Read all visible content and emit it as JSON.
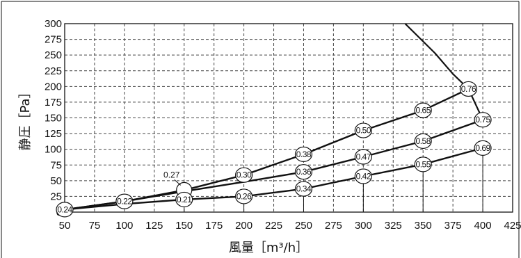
{
  "chart_data": {
    "type": "line",
    "title": "",
    "xlabel": "風量［m³/h］",
    "ylabel": "静圧［Pa］",
    "xlim": [
      50,
      425
    ],
    "ylim": [
      0,
      300
    ],
    "x_ticks": [
      50,
      75,
      100,
      125,
      150,
      175,
      200,
      225,
      250,
      275,
      300,
      325,
      350,
      375,
      400,
      425
    ],
    "y_ticks": [
      0,
      25,
      50,
      75,
      100,
      125,
      150,
      175,
      200,
      225,
      250,
      275,
      300
    ],
    "grid": true,
    "series": [
      {
        "points": [
          {
            "x": 50,
            "y": 4,
            "label": "0.24"
          },
          {
            "x": 100,
            "y": 17,
            "label": "0.22"
          },
          {
            "x": 150,
            "y": 35,
            "label": "0.27",
            "label_callout": true
          },
          {
            "x": 200,
            "y": 59,
            "label": "0.30"
          },
          {
            "x": 250,
            "y": 92,
            "label": "0.38"
          },
          {
            "x": 300,
            "y": 130,
            "label": "0.50"
          },
          {
            "x": 350,
            "y": 162,
            "label": "0.65"
          },
          {
            "x": 388,
            "y": 196,
            "label": "0.76"
          }
        ]
      },
      {
        "points": [
          {
            "x": 50,
            "y": 4
          },
          {
            "x": 100,
            "y": 17
          },
          {
            "x": 150,
            "y": 33
          },
          {
            "x": 200,
            "y": 48
          },
          {
            "x": 250,
            "y": 64,
            "label": "0.36"
          },
          {
            "x": 300,
            "y": 88,
            "label": "0.47"
          },
          {
            "x": 350,
            "y": 113,
            "label": "0.58"
          },
          {
            "x": 400,
            "y": 147,
            "label": "0.75"
          }
        ]
      },
      {
        "points": [
          {
            "x": 50,
            "y": 4
          },
          {
            "x": 100,
            "y": 13
          },
          {
            "x": 150,
            "y": 20,
            "label": "0.21"
          },
          {
            "x": 200,
            "y": 25,
            "label": "0.26"
          },
          {
            "x": 250,
            "y": 37,
            "label": "0.34"
          },
          {
            "x": 300,
            "y": 57,
            "label": "0.42"
          },
          {
            "x": 350,
            "y": 76,
            "label": "0.55"
          },
          {
            "x": 400,
            "y": 102,
            "label": "0.69"
          }
        ]
      },
      {
        "points": [
          {
            "x": 335,
            "y": 300
          },
          {
            "x": 360,
            "y": 253
          },
          {
            "x": 375,
            "y": 220
          },
          {
            "x": 388,
            "y": 196
          },
          {
            "x": 400,
            "y": 147
          }
        ]
      }
    ]
  }
}
